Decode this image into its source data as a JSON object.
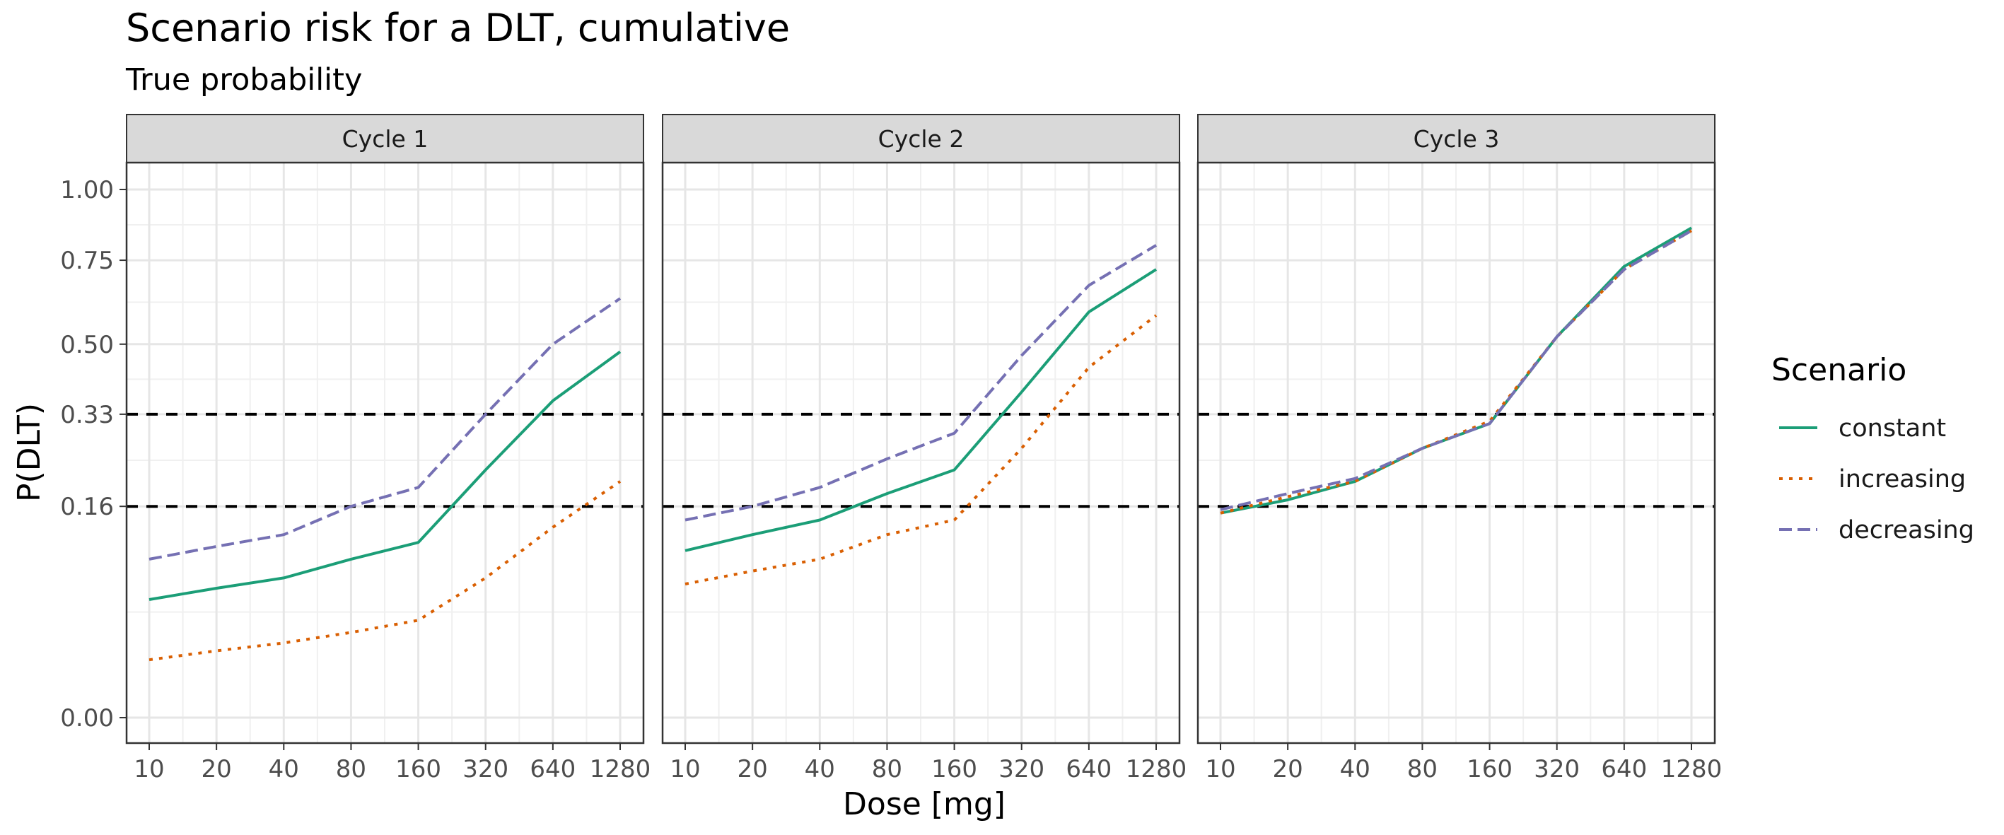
{
  "chart_data": {
    "type": "line",
    "title": "Scenario risk for a DLT, cumulative",
    "subtitle": "True probability",
    "xlabel": "Dose [mg]",
    "ylabel": "P(DLT)",
    "x_scale": "log2",
    "x": [
      10,
      20,
      40,
      80,
      160,
      320,
      640,
      1280
    ],
    "x_tick_labels": [
      "10",
      "20",
      "40",
      "80",
      "160",
      "320",
      "640",
      "1280"
    ],
    "ylim": [
      -0.05,
      1.05
    ],
    "y_scale": "sqrt",
    "y_ticks": [
      0.0,
      0.16,
      0.33,
      0.5,
      0.75,
      1.0
    ],
    "y_tick_labels": [
      "0.00",
      "0.16",
      "0.33",
      "0.50",
      "0.75",
      "1.00"
    ],
    "reference_lines": [
      0.16,
      0.33
    ],
    "grid": true,
    "legend": {
      "title": "Scenario",
      "placement": "right",
      "entries": [
        "constant",
        "increasing",
        "decreasing"
      ]
    },
    "colors": {
      "constant": "#1b9e77",
      "increasing": "#d95f02",
      "decreasing": "#7570b3"
    },
    "panels": [
      {
        "label": "Cycle 1",
        "series": [
          {
            "name": "constant",
            "values": [
              0.05,
              0.06,
              0.07,
              0.09,
              0.11,
              0.22,
              0.36,
              0.48
            ]
          },
          {
            "name": "increasing",
            "values": [
              0.012,
              0.016,
              0.02,
              0.026,
              0.034,
              0.07,
              0.13,
              0.2
            ]
          },
          {
            "name": "decreasing",
            "values": [
              0.09,
              0.105,
              0.12,
              0.16,
              0.19,
              0.33,
              0.5,
              0.63
            ]
          }
        ]
      },
      {
        "label": "Cycle 2",
        "series": [
          {
            "name": "constant",
            "values": [
              0.1,
              0.12,
              0.14,
              0.18,
              0.22,
              0.38,
              0.59,
              0.72
            ]
          },
          {
            "name": "increasing",
            "values": [
              0.064,
              0.077,
              0.09,
              0.12,
              0.14,
              0.26,
              0.44,
              0.58
            ]
          },
          {
            "name": "decreasing",
            "values": [
              0.14,
              0.16,
              0.19,
              0.24,
              0.29,
              0.47,
              0.67,
              0.8
            ]
          }
        ]
      },
      {
        "label": "Cycle 3",
        "series": [
          {
            "name": "constant",
            "values": [
              0.15,
              0.17,
              0.2,
              0.26,
              0.31,
              0.52,
              0.73,
              0.86
            ]
          },
          {
            "name": "increasing",
            "values": [
              0.15,
              0.175,
              0.2,
              0.26,
              0.315,
              0.52,
              0.72,
              0.85
            ]
          },
          {
            "name": "decreasing",
            "values": [
              0.155,
              0.18,
              0.205,
              0.26,
              0.31,
              0.52,
              0.72,
              0.85
            ]
          }
        ]
      }
    ]
  }
}
